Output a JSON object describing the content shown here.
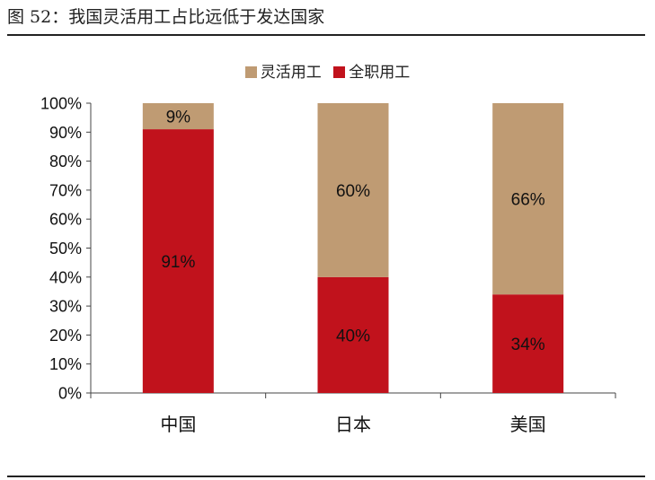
{
  "figure": {
    "title": "图 52：我国灵活用工占比远低于发达国家"
  },
  "chart_data": {
    "type": "bar",
    "stacked": true,
    "categories": [
      "中国",
      "日本",
      "美国"
    ],
    "series": [
      {
        "name": "全职用工",
        "values": [
          91,
          40,
          34
        ],
        "color": "#C1121C"
      },
      {
        "name": "灵活用工",
        "values": [
          9,
          60,
          66
        ],
        "color": "#BF9B73"
      }
    ],
    "data_labels": [
      [
        "91%",
        "40%",
        "34%"
      ],
      [
        "9%",
        "60%",
        "66%"
      ]
    ],
    "ylim": [
      0,
      100
    ],
    "yticks": [
      "0%",
      "10%",
      "20%",
      "30%",
      "40%",
      "50%",
      "60%",
      "70%",
      "80%",
      "90%",
      "100%"
    ],
    "legend_position": "top-center",
    "grid": false
  }
}
